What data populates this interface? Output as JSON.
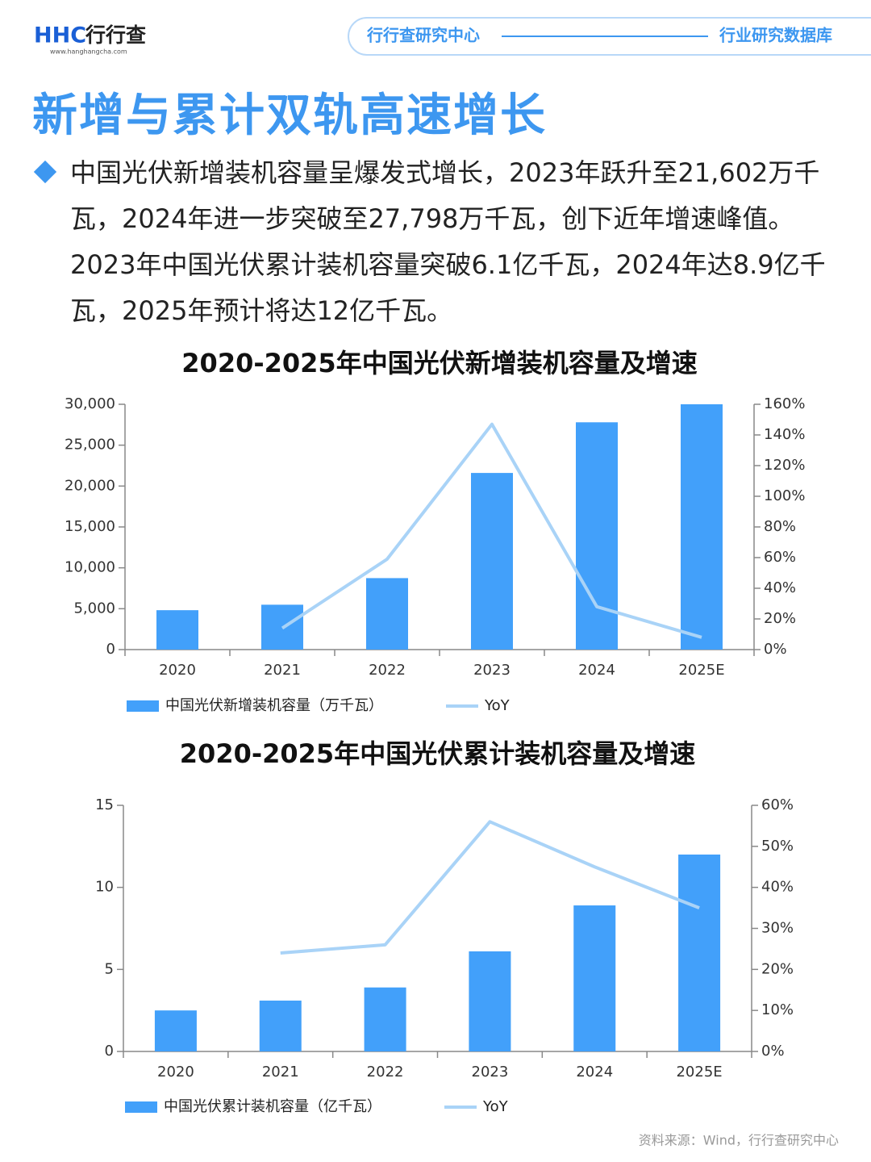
{
  "header": {
    "logo": "HHC",
    "brand": "行行查",
    "url": "www.hanghangcha.com",
    "tab_left": "行行查研究中心",
    "tab_right": "行业研究数据库"
  },
  "title": "新增与累计双轨高速增长",
  "paragraph": "中国光伏新增装机容量呈爆发式增长，2023年跃升至21,602万千瓦，2024年进一步突破至27,798万千瓦，创下近年增速峰值。2023年中国光伏累计装机容量突破6.1亿千瓦，2024年达8.9亿千瓦，2025年预计将达12亿千瓦。",
  "chart_data": [
    {
      "type": "combo",
      "title": "2020-2025年中国光伏新增装机容量及增速",
      "categories": [
        "2020",
        "2021",
        "2022",
        "2023",
        "2024",
        "2025E"
      ],
      "series": [
        {
          "name": "中国光伏新增装机容量（万千瓦）",
          "type": "bar",
          "color": "#42a0fa",
          "values": [
            4820,
            5488,
            8741,
            21602,
            27798,
            30000
          ]
        },
        {
          "name": "YoY",
          "type": "line",
          "axis": "y2",
          "color": "#a9d3f7",
          "values": [
            null,
            14,
            59,
            147,
            28,
            8
          ]
        }
      ],
      "ylim": [
        0,
        30000
      ],
      "yticks": [
        0,
        {
          "value": 5000,
          "label": "5,000"
        },
        {
          "value": 10000,
          "label": "10,000"
        },
        {
          "value": 15000,
          "label": "15,000"
        },
        {
          "value": 20000,
          "label": "20,000"
        },
        {
          "value": 25000,
          "label": "25,000"
        },
        {
          "value": 30000,
          "label": "30,000"
        }
      ],
      "y2lim": [
        0,
        160
      ],
      "y2ticks": [
        {
          "value": 0,
          "label": "0%"
        },
        {
          "value": 20,
          "label": "20%"
        },
        {
          "value": 40,
          "label": "40%"
        },
        {
          "value": 60,
          "label": "60%"
        },
        {
          "value": 80,
          "label": "80%"
        },
        {
          "value": 100,
          "label": "100%"
        },
        {
          "value": 120,
          "label": "120%"
        },
        {
          "value": 140,
          "label": "140%"
        },
        {
          "value": 160,
          "label": "160%"
        }
      ],
      "grid": false,
      "legend": "bottom"
    },
    {
      "type": "combo",
      "title": "2020-2025年中国光伏累计装机容量及增速",
      "categories": [
        "2020",
        "2021",
        "2022",
        "2023",
        "2024",
        "2025E"
      ],
      "series": [
        {
          "name": "中国光伏累计装机容量（亿千瓦）",
          "type": "bar",
          "color": "#42a0fa",
          "values": [
            2.5,
            3.1,
            3.9,
            6.1,
            8.9,
            12
          ]
        },
        {
          "name": "YoY",
          "type": "line",
          "axis": "y2",
          "color": "#a9d3f7",
          "values": [
            null,
            24,
            26,
            56,
            45,
            35
          ]
        }
      ],
      "ylim": [
        0,
        15
      ],
      "yticks": [
        0,
        5,
        10,
        15
      ],
      "y2lim": [
        0,
        60
      ],
      "y2ticks": [
        {
          "value": 0,
          "label": "0%"
        },
        {
          "value": 10,
          "label": "10%"
        },
        {
          "value": 20,
          "label": "20%"
        },
        {
          "value": 30,
          "label": "30%"
        },
        {
          "value": 40,
          "label": "40%"
        },
        {
          "value": 50,
          "label": "50%"
        },
        {
          "value": 60,
          "label": "60%"
        }
      ],
      "grid": false,
      "legend": "bottom"
    }
  ],
  "source": "资料来源：Wind，行行查研究中心"
}
